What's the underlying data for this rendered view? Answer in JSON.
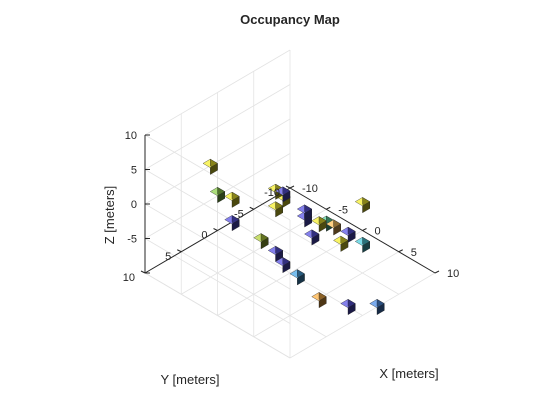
{
  "chart_data": {
    "type": "scatter",
    "title": "Occupancy Map",
    "xlabel": "X [meters]",
    "ylabel": "Y [meters]",
    "zlabel": "Z [meters]",
    "xlim": [
      -10,
      10
    ],
    "ylim": [
      -10,
      10
    ],
    "zlim": [
      -10,
      10
    ],
    "x_ticks": [
      "-10",
      "-5",
      "0",
      "5",
      "10"
    ],
    "y_ticks": [
      "10",
      "5",
      "0",
      "-5",
      "-10"
    ],
    "z_ticks": [
      "10",
      "5",
      "0",
      "-5"
    ],
    "grid": true,
    "view": "isometric",
    "points": [
      {
        "x": 2,
        "y": 10,
        "z": 8,
        "color": "#f5ef30"
      },
      {
        "x": -2,
        "y": 8,
        "z": 5,
        "color": "#8fd14f"
      },
      {
        "x": 4,
        "y": 8,
        "z": 2,
        "color": "#b5d33d"
      },
      {
        "x": 9,
        "y": 3,
        "z": 4,
        "color": "#ffc25a"
      },
      {
        "x": 10,
        "y": 0,
        "z": 6,
        "color": "#f5ef30"
      },
      {
        "x": 6,
        "y": 2,
        "z": 2,
        "color": "#f5ef30"
      },
      {
        "x": 9,
        "y": 2,
        "z": 1,
        "color": "#f5ef30"
      },
      {
        "x": -5,
        "y": 6,
        "z": 6,
        "color": "#f5ef30"
      },
      {
        "x": 0,
        "y": 2,
        "z": 3,
        "color": "#f5ef30"
      },
      {
        "x": 0,
        "y": 1,
        "z": 2,
        "color": "#5b56e6"
      },
      {
        "x": 2,
        "y": 0,
        "z": 0,
        "color": "#5b56e6"
      },
      {
        "x": 2,
        "y": 0,
        "z": -1,
        "color": "#5b56e6"
      },
      {
        "x": 4,
        "y": -1,
        "z": -1,
        "color": "#5fd6a0"
      },
      {
        "x": -1,
        "y": 0,
        "z": 0,
        "color": "#f5ef30"
      },
      {
        "x": -2,
        "y": 0,
        "z": -2,
        "color": "#f5ef30"
      },
      {
        "x": 3,
        "y": 0,
        "z": -3,
        "color": "#5b56e6"
      },
      {
        "x": 6,
        "y": -2,
        "z": -2,
        "color": "#5b56e6"
      },
      {
        "x": 9,
        "y": -1,
        "z": -1,
        "color": "#4fd0e0"
      },
      {
        "x": -5,
        "y": 3,
        "z": -4,
        "color": "#5b56e6"
      },
      {
        "x": 0,
        "y": 2,
        "z": -6,
        "color": "#5b56e6"
      },
      {
        "x": 1,
        "y": 2,
        "z": -7,
        "color": "#5b56e6"
      },
      {
        "x": 6,
        "y": 2,
        "z": -9,
        "color": "#ffb347"
      },
      {
        "x": 8,
        "y": 0,
        "z": -10,
        "color": "#5b56e6"
      },
      {
        "x": 1,
        "y": 0,
        "z": -10,
        "color": "#4aa8e8"
      },
      {
        "x": 10,
        "y": -2,
        "z": -10,
        "color": "#4e8fe8"
      }
    ]
  }
}
